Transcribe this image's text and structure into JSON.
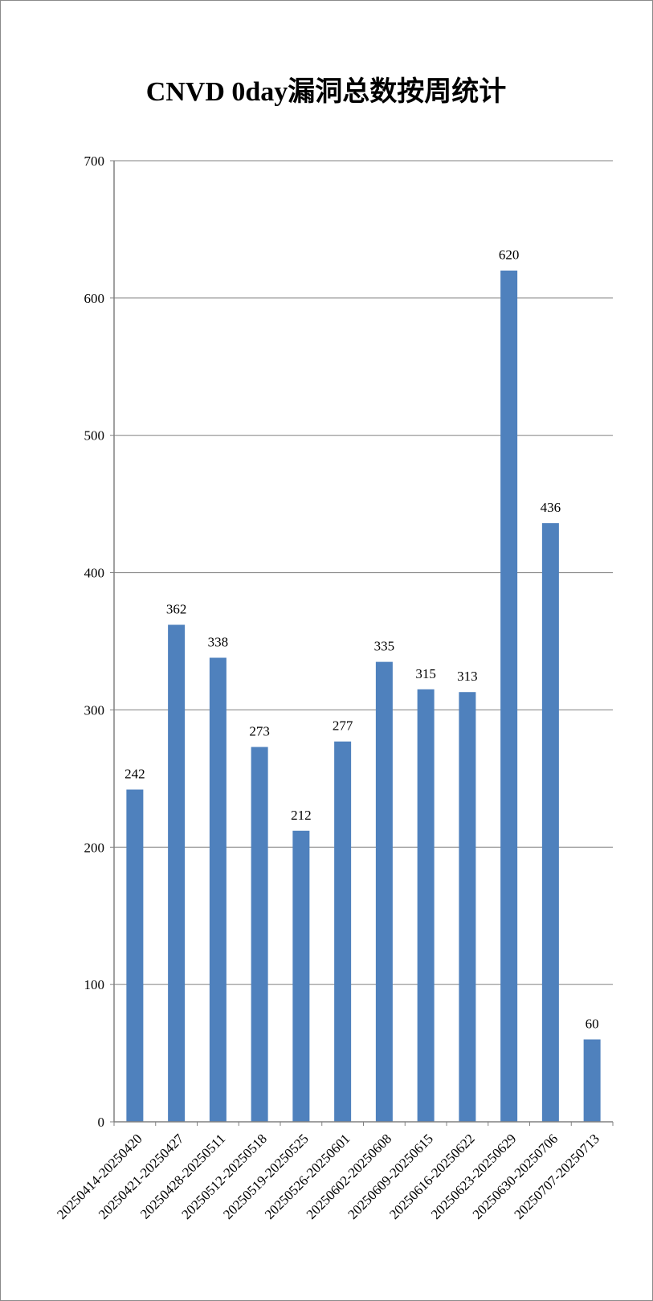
{
  "chart_data": {
    "type": "bar",
    "title": "CNVD 0day漏洞总数按周统计",
    "xlabel": "",
    "ylabel": "",
    "categories": [
      "20250414-20250420",
      "20250421-20250427",
      "20250428-20250511",
      "20250512-20250518",
      "20250519-20250525",
      "20250526-20250601",
      "20250602-20250608",
      "20250609-20250615",
      "20250616-20250622",
      "20250623-20250629",
      "20250630-20250706",
      "20250707-20250713"
    ],
    "values": [
      242,
      362,
      338,
      273,
      212,
      277,
      335,
      315,
      313,
      620,
      436,
      60
    ],
    "ylim": [
      0,
      700
    ],
    "yticks": [
      0,
      100,
      200,
      300,
      400,
      500,
      600,
      700
    ],
    "grid": true,
    "legend": "none",
    "data_labels": true,
    "colors": {
      "bar": "#4F81BD",
      "grid": "#808080",
      "axis": "#808080"
    }
  }
}
